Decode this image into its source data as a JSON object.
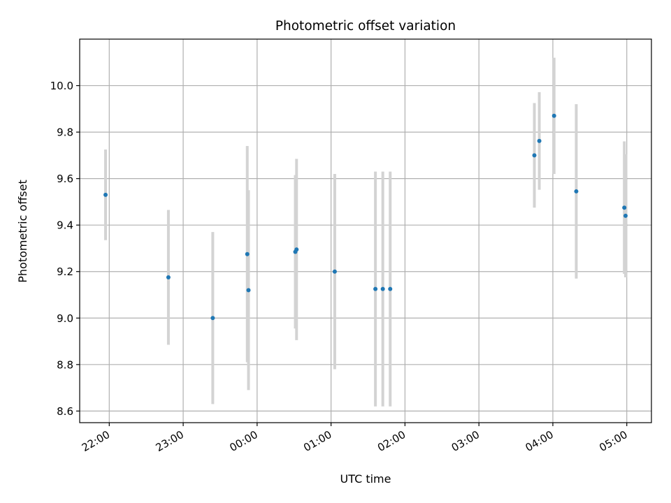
{
  "chart_data": {
    "type": "scatter",
    "title": "Photometric offset variation",
    "xlabel": "UTC time",
    "ylabel": "Photometric offset",
    "x_axis_type": "time",
    "xlim": [
      "21:36",
      "05:20"
    ],
    "ylim": [
      8.55,
      10.2
    ],
    "grid": true,
    "x_ticks": [
      "22:00",
      "23:00",
      "00:00",
      "01:00",
      "02:00",
      "03:00",
      "04:00",
      "05:00"
    ],
    "y_ticks": [
      "8.6",
      "8.8",
      "9.0",
      "9.2",
      "9.4",
      "9.6",
      "9.8",
      "10.0"
    ],
    "y_tick_values": [
      8.6,
      8.8,
      9.0,
      9.2,
      9.4,
      9.6,
      9.8,
      10.0
    ],
    "colors": {
      "marker": "#1f77b4",
      "errorbar": "#d3d3d3",
      "grid": "#b0b0b0"
    },
    "points": [
      {
        "x": "21:57",
        "y": 9.53,
        "err": 0.195
      },
      {
        "x": "22:48",
        "y": 9.175,
        "err": 0.29
      },
      {
        "x": "23:24",
        "y": 9.0,
        "err": 0.37
      },
      {
        "x": "23:52",
        "y": 9.275,
        "err": 0.465
      },
      {
        "x": "23:53",
        "y": 9.12,
        "err": 0.43
      },
      {
        "x": "00:31",
        "y": 9.285,
        "err": 0.33
      },
      {
        "x": "00:32",
        "y": 9.295,
        "err": 0.39
      },
      {
        "x": "01:03",
        "y": 9.2,
        "err": 0.42
      },
      {
        "x": "01:36",
        "y": 9.125,
        "err": 0.505
      },
      {
        "x": "01:42",
        "y": 9.125,
        "err": 0.505
      },
      {
        "x": "01:48",
        "y": 9.125,
        "err": 0.505
      },
      {
        "x": "03:45",
        "y": 9.7,
        "err": 0.225
      },
      {
        "x": "03:49",
        "y": 9.762,
        "err": 0.21
      },
      {
        "x": "04:01",
        "y": 9.87,
        "err": 0.25
      },
      {
        "x": "04:19",
        "y": 9.545,
        "err": 0.375
      },
      {
        "x": "04:58",
        "y": 9.475,
        "err": 0.285
      },
      {
        "x": "04:59",
        "y": 9.44,
        "err": 0.265
      }
    ]
  }
}
